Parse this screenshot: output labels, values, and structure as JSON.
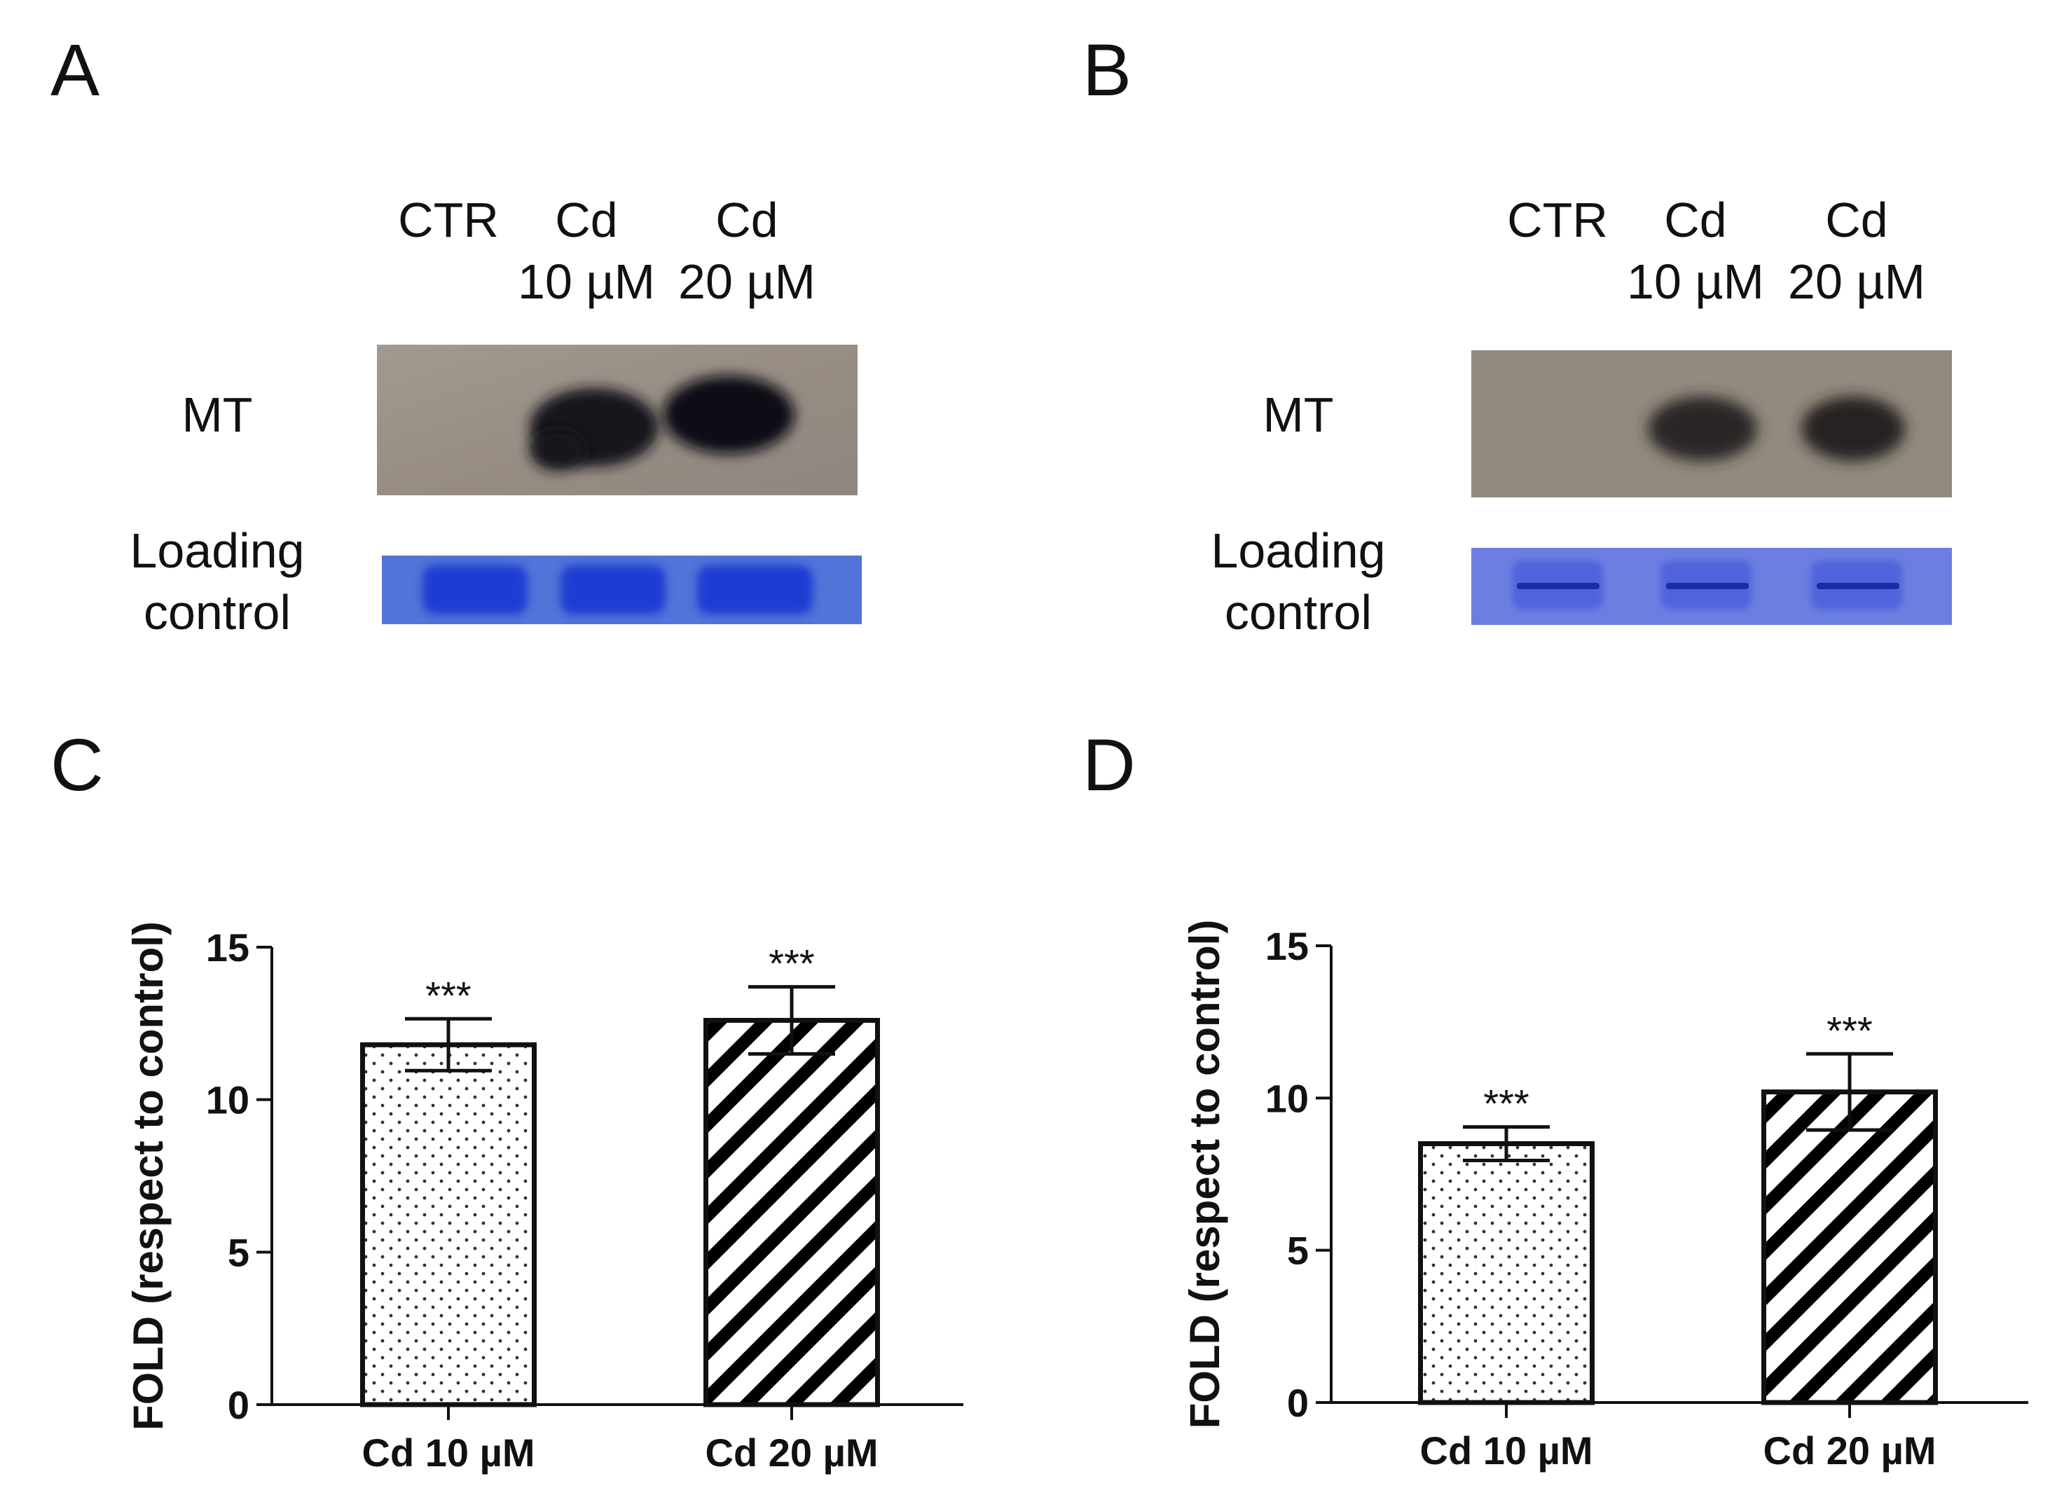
{
  "panels": {
    "a": {
      "letter": "A"
    },
    "b": {
      "letter": "B"
    },
    "c": {
      "letter": "C"
    },
    "d": {
      "letter": "D"
    }
  },
  "blot_labels": {
    "lanes": [
      {
        "line1": "CTR",
        "line2": ""
      },
      {
        "line1": "Cd",
        "line2": "10 µM"
      },
      {
        "line1": "Cd",
        "line2": "20 µM"
      }
    ],
    "mt": "MT",
    "loading_line1": "Loading",
    "loading_line2": "control"
  },
  "colors": {
    "mt_membrane": "#9b9189",
    "mt_band": "#121219",
    "loading_background": "#4f6fda",
    "loading_band": "#1e3fd2",
    "axis": "#111111"
  },
  "chart_data": [
    {
      "type": "bar",
      "panel": "C",
      "categories": [
        "Cd 10 µM",
        "Cd 20 µM"
      ],
      "values": [
        11.8,
        12.6
      ],
      "errors": [
        0.85,
        1.1
      ],
      "significance": [
        "***",
        "***"
      ],
      "patterns": [
        "dots",
        "diagonal-stripes"
      ],
      "ylabel": "FOLD (respect to control)",
      "xlabel": "",
      "ylim": [
        0,
        15
      ],
      "yticks": [
        0,
        5,
        10,
        15
      ]
    },
    {
      "type": "bar",
      "panel": "D",
      "categories": [
        "Cd 10 µM",
        "Cd 20 µM"
      ],
      "values": [
        8.5,
        10.2
      ],
      "errors": [
        0.55,
        1.25
      ],
      "significance": [
        "***",
        "***"
      ],
      "patterns": [
        "dots",
        "diagonal-stripes"
      ],
      "ylabel": "FOLD (respect to control)",
      "xlabel": "",
      "ylim": [
        0,
        15
      ],
      "yticks": [
        0,
        5,
        10,
        15
      ]
    }
  ]
}
